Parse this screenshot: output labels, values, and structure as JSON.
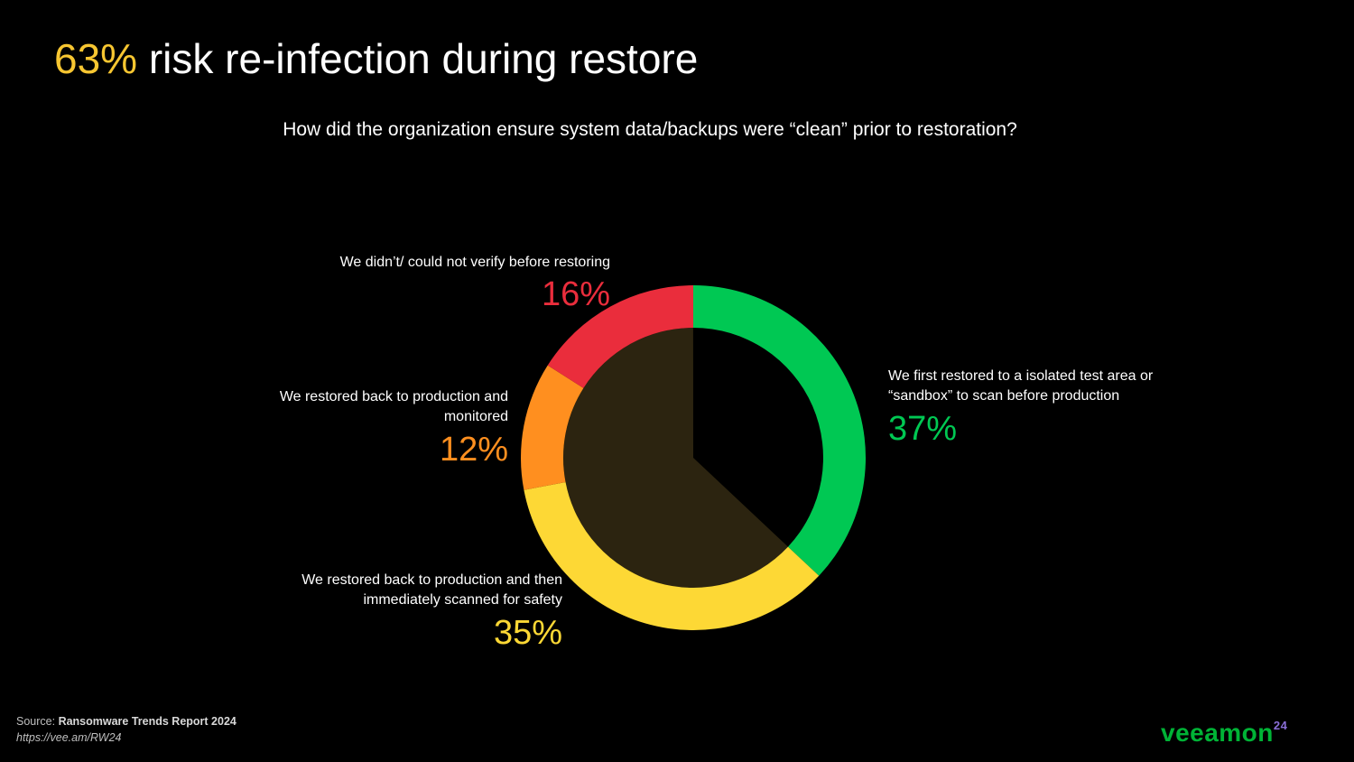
{
  "header": {
    "title_highlight": "63%",
    "title_rest": " risk re-infection during restore",
    "subtitle": "How did the organization ensure system data/backups were “clean” prior to restoration?"
  },
  "chart_data": {
    "type": "pie",
    "categories": [
      "We first restored to a isolated test area or “sandbox” to scan before production",
      "We restored back to production and then immediately scanned for safety",
      "We restored back to production and monitored",
      "We didn’t/ could not verify before restoring"
    ],
    "values": [
      37,
      35,
      12,
      16
    ],
    "labels": [
      "37%",
      "35%",
      "12%",
      "16%"
    ],
    "colors": [
      "#00c853",
      "#fdd835",
      "#ff8f1f",
      "#ea2d3c"
    ],
    "highlight_colors": {
      "inner_wedge": "#2c2410",
      "center": "#000000"
    },
    "highlighted_share": 63
  },
  "slices": {
    "s0": {
      "line1": "We first restored to a isolated test area or",
      "line2": "“sandbox” to scan before production",
      "pct": "37%"
    },
    "s1": {
      "line1": "We restored back to production and then",
      "line2": "immediately scanned for safety",
      "pct": "35%"
    },
    "s2": {
      "line1": "We restored back to production and",
      "line2": "monitored",
      "pct": "12%"
    },
    "s3": {
      "line1": "We didn’t/ could not verify before restoring",
      "pct": "16%"
    }
  },
  "footer": {
    "source_prefix": "Source: ",
    "source_name": "Ransomware Trends Report 2024",
    "source_url": "https://vee.am/RW24",
    "logo_text": "veeamon",
    "logo_year": "24"
  },
  "colors": {
    "background": "#000000",
    "title_highlight": "#f7c631",
    "logo": "#00b336"
  }
}
